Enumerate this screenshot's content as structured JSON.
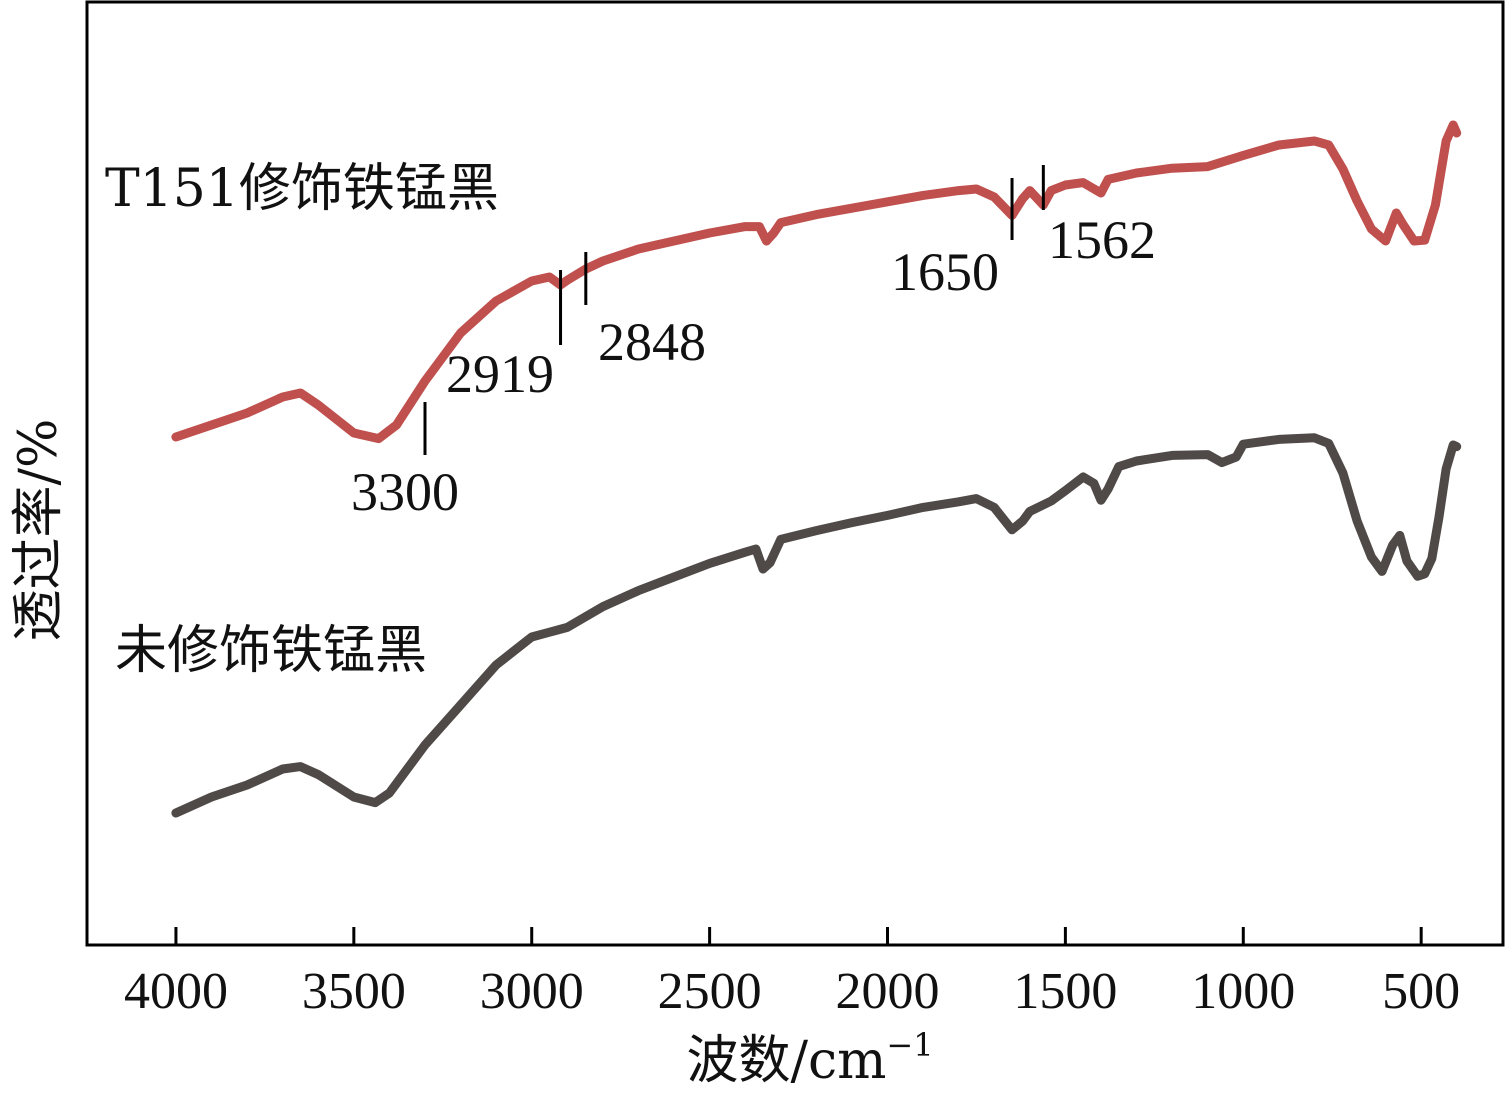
{
  "chart_data": {
    "type": "line",
    "xlabel": "波数/cm",
    "xlabel_sup": "−1",
    "ylabel": "透过率/%",
    "xlim": [
      4250,
      270
    ],
    "x_reversed": true,
    "yticks_shown": false,
    "xticks": [
      {
        "value": 4000,
        "label": "4000"
      },
      {
        "value": 3500,
        "label": "3500"
      },
      {
        "value": 3000,
        "label": "3000"
      },
      {
        "value": 2500,
        "label": "2500"
      },
      {
        "value": 2000,
        "label": "2000"
      },
      {
        "value": 1500,
        "label": "1500"
      },
      {
        "value": 1000,
        "label": "1000"
      },
      {
        "value": 500,
        "label": "500"
      }
    ],
    "ylim": [
      0,
      100
    ],
    "series": [
      {
        "name": "T151修饰铁锰黑",
        "color": "#c0504d",
        "points": [
          [
            4000,
            58
          ],
          [
            3900,
            59.5
          ],
          [
            3800,
            61
          ],
          [
            3700,
            63
          ],
          [
            3650,
            63.5
          ],
          [
            3600,
            62
          ],
          [
            3500,
            58.5
          ],
          [
            3430,
            57.8
          ],
          [
            3380,
            59.5
          ],
          [
            3300,
            65
          ],
          [
            3200,
            71
          ],
          [
            3100,
            75
          ],
          [
            3000,
            77.5
          ],
          [
            2950,
            78
          ],
          [
            2919,
            77
          ],
          [
            2900,
            77.6
          ],
          [
            2848,
            79
          ],
          [
            2800,
            80
          ],
          [
            2700,
            81.5
          ],
          [
            2600,
            82.5
          ],
          [
            2500,
            83.5
          ],
          [
            2400,
            84.3
          ],
          [
            2360,
            84.3
          ],
          [
            2340,
            82.5
          ],
          [
            2320,
            83.5
          ],
          [
            2300,
            84.8
          ],
          [
            2200,
            85.8
          ],
          [
            2100,
            86.6
          ],
          [
            2000,
            87.4
          ],
          [
            1900,
            88.2
          ],
          [
            1800,
            88.8
          ],
          [
            1750,
            89
          ],
          [
            1700,
            88
          ],
          [
            1650,
            85.7
          ],
          [
            1620,
            87.8
          ],
          [
            1600,
            88.8
          ],
          [
            1562,
            87
          ],
          [
            1540,
            88.8
          ],
          [
            1500,
            89.5
          ],
          [
            1450,
            89.8
          ],
          [
            1400,
            88.5
          ],
          [
            1380,
            90.2
          ],
          [
            1300,
            91
          ],
          [
            1200,
            91.6
          ],
          [
            1100,
            91.8
          ],
          [
            1000,
            93.2
          ],
          [
            900,
            94.5
          ],
          [
            800,
            95
          ],
          [
            760,
            94.5
          ],
          [
            720,
            91.5
          ],
          [
            680,
            87.5
          ],
          [
            640,
            84
          ],
          [
            600,
            82.5
          ],
          [
            570,
            86
          ],
          [
            550,
            84.5
          ],
          [
            520,
            82.5
          ],
          [
            490,
            82.6
          ],
          [
            460,
            87
          ],
          [
            430,
            95
          ],
          [
            410,
            97
          ],
          [
            400,
            96
          ]
        ]
      },
      {
        "name": "未修饰铁锰黑",
        "color": "#4f4a47",
        "points": [
          [
            4000,
            11
          ],
          [
            3900,
            13
          ],
          [
            3800,
            14.5
          ],
          [
            3700,
            16.5
          ],
          [
            3650,
            16.8
          ],
          [
            3600,
            15.8
          ],
          [
            3500,
            13
          ],
          [
            3440,
            12.3
          ],
          [
            3400,
            13.5
          ],
          [
            3300,
            19.5
          ],
          [
            3200,
            24.5
          ],
          [
            3100,
            29.5
          ],
          [
            3000,
            33
          ],
          [
            2950,
            33.6
          ],
          [
            2900,
            34.2
          ],
          [
            2800,
            36.8
          ],
          [
            2700,
            38.8
          ],
          [
            2600,
            40.5
          ],
          [
            2500,
            42.2
          ],
          [
            2400,
            43.6
          ],
          [
            2370,
            44
          ],
          [
            2350,
            41.5
          ],
          [
            2330,
            42.3
          ],
          [
            2300,
            45.2
          ],
          [
            2200,
            46.3
          ],
          [
            2100,
            47.3
          ],
          [
            2000,
            48.2
          ],
          [
            1900,
            49.2
          ],
          [
            1800,
            49.9
          ],
          [
            1750,
            50.3
          ],
          [
            1700,
            49.2
          ],
          [
            1650,
            46.4
          ],
          [
            1620,
            47.5
          ],
          [
            1600,
            48.7
          ],
          [
            1540,
            50
          ],
          [
            1500,
            51.3
          ],
          [
            1450,
            53
          ],
          [
            1420,
            52.2
          ],
          [
            1400,
            50.1
          ],
          [
            1380,
            51.5
          ],
          [
            1350,
            54.3
          ],
          [
            1300,
            55
          ],
          [
            1200,
            55.7
          ],
          [
            1100,
            55.8
          ],
          [
            1060,
            54.8
          ],
          [
            1020,
            55.5
          ],
          [
            1000,
            57.1
          ],
          [
            900,
            57.7
          ],
          [
            800,
            57.9
          ],
          [
            760,
            57.2
          ],
          [
            720,
            53.5
          ],
          [
            680,
            47.5
          ],
          [
            640,
            43
          ],
          [
            610,
            41.2
          ],
          [
            580,
            44.5
          ],
          [
            560,
            45.7
          ],
          [
            540,
            42.5
          ],
          [
            510,
            40.6
          ],
          [
            490,
            40.9
          ],
          [
            470,
            42.8
          ],
          [
            450,
            48
          ],
          [
            430,
            54
          ],
          [
            410,
            57
          ],
          [
            400,
            56.8
          ]
        ]
      }
    ],
    "annotations": [
      {
        "x": 3300,
        "label": "3300"
      },
      {
        "x": 2919,
        "label": "2919"
      },
      {
        "x": 2848,
        "label": "2848"
      },
      {
        "x": 1650,
        "label": "1650"
      },
      {
        "x": 1562,
        "label": "1562"
      }
    ]
  }
}
